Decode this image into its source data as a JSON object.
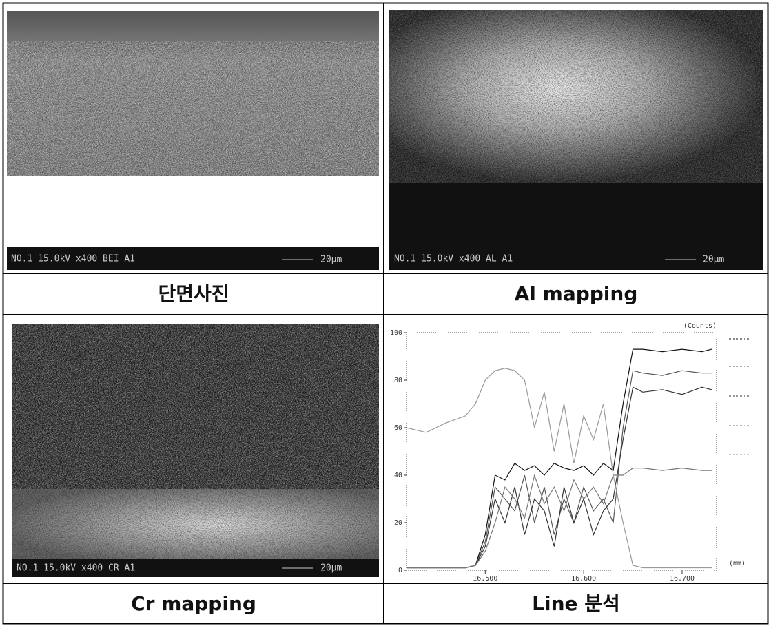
{
  "panels": [
    {
      "caption": "단면사진",
      "info": "NO.1 15.0kV x400 BEI A1",
      "scale": "20μm"
    },
    {
      "caption": "Al mapping",
      "info": "NO.1 15.0kV x400 AL A1",
      "scale": "20μm"
    },
    {
      "caption": "Cr mapping",
      "info": "NO.1 15.0kV x400 CR A1",
      "scale": "20μm"
    },
    {
      "caption": "Line 분석",
      "chart": {
        "type": "line",
        "y_unit": "(Counts)",
        "x_unit": "(mm)",
        "x": [
          16.42,
          16.44,
          16.46,
          16.48,
          16.49,
          16.5,
          16.51,
          16.52,
          16.53,
          16.54,
          16.55,
          16.56,
          16.57,
          16.58,
          16.59,
          16.6,
          16.61,
          16.62,
          16.63,
          16.64,
          16.65,
          16.66,
          16.68,
          16.7,
          16.72,
          16.73
        ],
        "xlim": [
          16.42,
          16.735
        ],
        "xticks": [
          {
            "value": 16.5,
            "label": "16.500"
          },
          {
            "value": 16.6,
            "label": "16.600"
          },
          {
            "value": 16.7,
            "label": "16.700"
          }
        ],
        "ylim": [
          0,
          100
        ],
        "yticks": [
          0,
          20,
          40,
          60,
          80,
          100
        ],
        "series": [
          {
            "color": "#111111",
            "values": [
              1,
              1,
              1,
              1,
              2,
              15,
              40,
              38,
              45,
              42,
              44,
              40,
              45,
              43,
              42,
              44,
              40,
              45,
              42,
              70,
              93,
              93,
              92,
              93,
              92,
              93
            ]
          },
          {
            "color": "#555555",
            "values": [
              1,
              1,
              1,
              1,
              2,
              12,
              35,
              30,
              25,
              40,
              20,
              35,
              15,
              30,
              20,
              35,
              25,
              30,
              20,
              60,
              84,
              83,
              82,
              84,
              83,
              83
            ]
          },
          {
            "color": "#333333",
            "values": [
              1,
              1,
              1,
              1,
              2,
              10,
              30,
              20,
              35,
              15,
              30,
              25,
              10,
              35,
              20,
              30,
              15,
              25,
              30,
              55,
              77,
              75,
              76,
              74,
              77,
              76
            ]
          },
          {
            "color": "#777777",
            "values": [
              1,
              1,
              1,
              1,
              2,
              8,
              20,
              35,
              30,
              22,
              40,
              28,
              35,
              25,
              38,
              30,
              35,
              28,
              40,
              40,
              43,
              43,
              42,
              43,
              42,
              42
            ]
          },
          {
            "color": "#999999",
            "values": [
              60,
              58,
              62,
              65,
              70,
              80,
              84,
              85,
              84,
              80,
              60,
              75,
              50,
              70,
              45,
              65,
              55,
              70,
              40,
              20,
              2,
              1,
              1,
              1,
              1,
              1
            ]
          }
        ]
      }
    }
  ]
}
